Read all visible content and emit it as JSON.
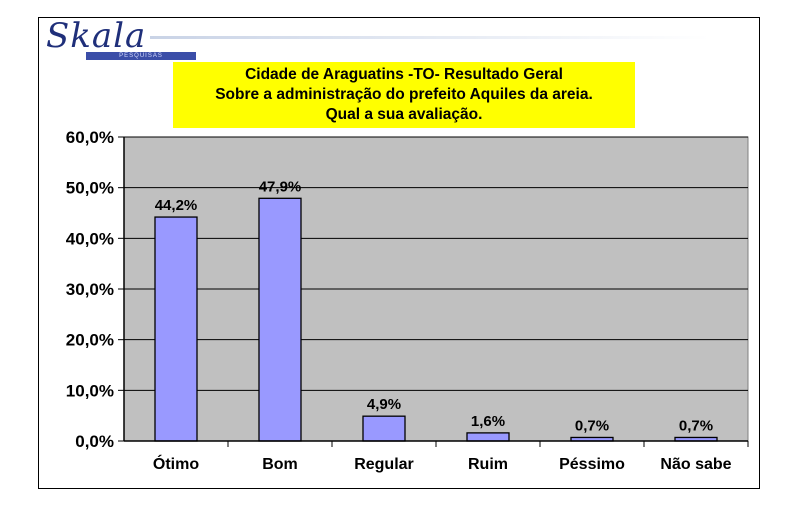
{
  "logo": {
    "name": "Skala",
    "tagline": "PESQUISAS"
  },
  "chart_data": {
    "type": "bar",
    "title_lines": [
      "Cidade de Araguatins -TO- Resultado Geral",
      "Sobre a administração do prefeito Aquiles da areia.",
      "Qual a sua avaliação."
    ],
    "categories": [
      "Ótimo",
      "Bom",
      "Regular",
      "Ruim",
      "Péssimo",
      "Não sabe"
    ],
    "values": [
      44.2,
      47.9,
      4.9,
      1.6,
      0.7,
      0.7
    ],
    "data_labels": [
      "44,2%",
      "47,9%",
      "4,9%",
      "1,6%",
      "0,7%",
      "0,7%"
    ],
    "y_ticks": [
      "0,0%",
      "10,0%",
      "20,0%",
      "30,0%",
      "40,0%",
      "50,0%",
      "60,0%"
    ],
    "ylim": [
      0,
      60
    ],
    "grid": true,
    "colors": {
      "bar_fill": "#9999ff",
      "bar_stroke": "#000000",
      "plot_background": "#c0c0c0",
      "title_background": "#ffff00"
    }
  }
}
